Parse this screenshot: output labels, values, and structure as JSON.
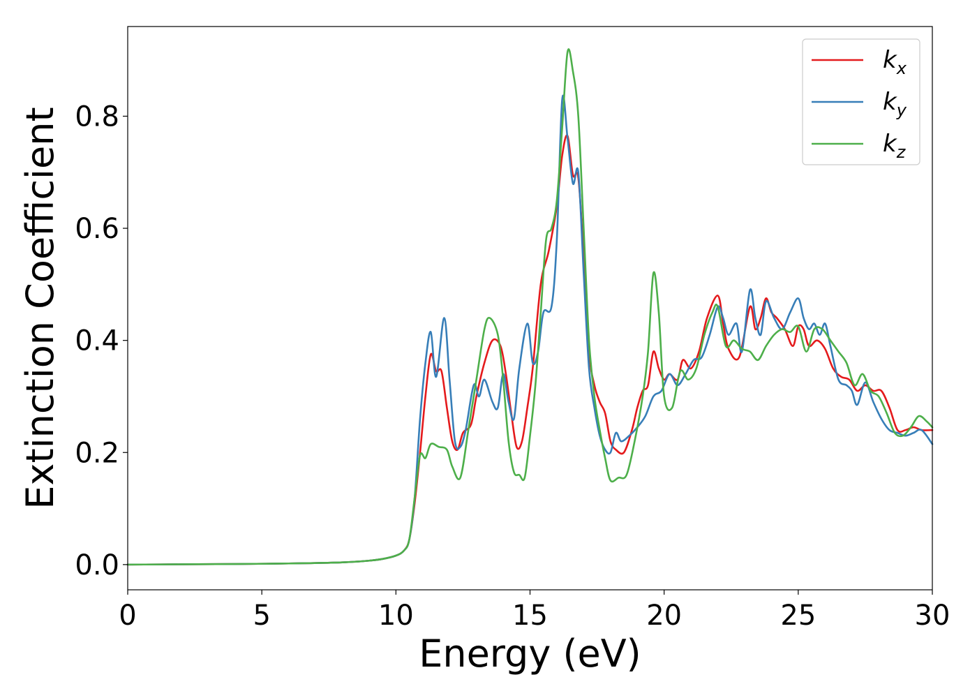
{
  "chart_data": {
    "type": "line",
    "xlabel": "Energy (eV)",
    "ylabel": "Extinction Coefficient",
    "xlim": [
      0,
      30
    ],
    "ylim": [
      -0.045,
      0.96
    ],
    "xticks": [
      0,
      5,
      10,
      15,
      20,
      25,
      30
    ],
    "xtick_labels": [
      "0",
      "5",
      "10",
      "15",
      "20",
      "25",
      "30"
    ],
    "yticks": [
      0.0,
      0.2,
      0.4,
      0.6,
      0.8
    ],
    "ytick_labels": [
      "0.0",
      "0.2",
      "0.4",
      "0.6",
      "0.8"
    ],
    "grid": false,
    "legend_position": "top-right",
    "series": [
      {
        "name": "k",
        "subscript": "x",
        "color": "#e41a1c",
        "points": [
          [
            0,
            0
          ],
          [
            2,
            0.0005
          ],
          [
            4,
            0.001
          ],
          [
            6,
            0.002
          ],
          [
            8,
            0.004
          ],
          [
            9,
            0.007
          ],
          [
            9.5,
            0.01
          ],
          [
            10,
            0.016
          ],
          [
            10.3,
            0.025
          ],
          [
            10.5,
            0.045
          ],
          [
            10.7,
            0.11
          ],
          [
            10.9,
            0.2
          ],
          [
            11.1,
            0.3
          ],
          [
            11.3,
            0.375
          ],
          [
            11.5,
            0.345
          ],
          [
            11.7,
            0.345
          ],
          [
            11.9,
            0.28
          ],
          [
            12.1,
            0.22
          ],
          [
            12.3,
            0.205
          ],
          [
            12.5,
            0.235
          ],
          [
            12.8,
            0.25
          ],
          [
            13.0,
            0.3
          ],
          [
            13.3,
            0.36
          ],
          [
            13.6,
            0.4
          ],
          [
            13.9,
            0.39
          ],
          [
            14.1,
            0.34
          ],
          [
            14.3,
            0.27
          ],
          [
            14.5,
            0.21
          ],
          [
            14.7,
            0.22
          ],
          [
            14.9,
            0.28
          ],
          [
            15.1,
            0.35
          ],
          [
            15.4,
            0.5
          ],
          [
            15.7,
            0.56
          ],
          [
            16.0,
            0.64
          ],
          [
            16.2,
            0.73
          ],
          [
            16.4,
            0.765
          ],
          [
            16.6,
            0.695
          ],
          [
            16.8,
            0.69
          ],
          [
            17.0,
            0.55
          ],
          [
            17.2,
            0.38
          ],
          [
            17.4,
            0.32
          ],
          [
            17.6,
            0.29
          ],
          [
            17.8,
            0.27
          ],
          [
            18.0,
            0.22
          ],
          [
            18.2,
            0.205
          ],
          [
            18.5,
            0.2
          ],
          [
            18.8,
            0.24
          ],
          [
            19.0,
            0.28
          ],
          [
            19.2,
            0.31
          ],
          [
            19.4,
            0.32
          ],
          [
            19.6,
            0.38
          ],
          [
            19.8,
            0.35
          ],
          [
            20.0,
            0.33
          ],
          [
            20.2,
            0.34
          ],
          [
            20.5,
            0.33
          ],
          [
            20.7,
            0.365
          ],
          [
            21.0,
            0.35
          ],
          [
            21.3,
            0.38
          ],
          [
            21.6,
            0.44
          ],
          [
            22.0,
            0.48
          ],
          [
            22.2,
            0.43
          ],
          [
            22.4,
            0.385
          ],
          [
            22.8,
            0.37
          ],
          [
            23.2,
            0.46
          ],
          [
            23.4,
            0.42
          ],
          [
            23.6,
            0.44
          ],
          [
            23.8,
            0.475
          ],
          [
            24.0,
            0.45
          ],
          [
            24.2,
            0.44
          ],
          [
            24.5,
            0.42
          ],
          [
            24.8,
            0.39
          ],
          [
            25.0,
            0.425
          ],
          [
            25.2,
            0.42
          ],
          [
            25.4,
            0.39
          ],
          [
            25.7,
            0.4
          ],
          [
            26.0,
            0.385
          ],
          [
            26.3,
            0.35
          ],
          [
            26.6,
            0.335
          ],
          [
            26.9,
            0.33
          ],
          [
            27.2,
            0.31
          ],
          [
            27.5,
            0.32
          ],
          [
            27.8,
            0.31
          ],
          [
            28.1,
            0.31
          ],
          [
            28.4,
            0.28
          ],
          [
            28.7,
            0.24
          ],
          [
            29.0,
            0.24
          ],
          [
            29.3,
            0.245
          ],
          [
            29.6,
            0.24
          ],
          [
            30.0,
            0.24
          ]
        ]
      },
      {
        "name": "k",
        "subscript": "y",
        "color": "#377eb8",
        "points": [
          [
            0,
            0
          ],
          [
            2,
            0.0005
          ],
          [
            4,
            0.001
          ],
          [
            6,
            0.002
          ],
          [
            8,
            0.004
          ],
          [
            9,
            0.007
          ],
          [
            9.5,
            0.01
          ],
          [
            10,
            0.016
          ],
          [
            10.3,
            0.025
          ],
          [
            10.5,
            0.045
          ],
          [
            10.7,
            0.12
          ],
          [
            10.9,
            0.26
          ],
          [
            11.1,
            0.36
          ],
          [
            11.3,
            0.415
          ],
          [
            11.5,
            0.335
          ],
          [
            11.8,
            0.44
          ],
          [
            12.0,
            0.33
          ],
          [
            12.2,
            0.22
          ],
          [
            12.4,
            0.21
          ],
          [
            12.6,
            0.24
          ],
          [
            12.9,
            0.32
          ],
          [
            13.1,
            0.3
          ],
          [
            13.3,
            0.33
          ],
          [
            13.6,
            0.29
          ],
          [
            13.8,
            0.28
          ],
          [
            14.0,
            0.34
          ],
          [
            14.2,
            0.29
          ],
          [
            14.4,
            0.26
          ],
          [
            14.6,
            0.35
          ],
          [
            14.9,
            0.43
          ],
          [
            15.1,
            0.36
          ],
          [
            15.3,
            0.38
          ],
          [
            15.5,
            0.45
          ],
          [
            15.8,
            0.46
          ],
          [
            16.0,
            0.58
          ],
          [
            16.2,
            0.83
          ],
          [
            16.4,
            0.76
          ],
          [
            16.6,
            0.68
          ],
          [
            16.8,
            0.7
          ],
          [
            17.0,
            0.52
          ],
          [
            17.2,
            0.35
          ],
          [
            17.4,
            0.28
          ],
          [
            17.6,
            0.23
          ],
          [
            17.8,
            0.205
          ],
          [
            18.0,
            0.2
          ],
          [
            18.2,
            0.235
          ],
          [
            18.4,
            0.22
          ],
          [
            18.7,
            0.23
          ],
          [
            19.0,
            0.245
          ],
          [
            19.3,
            0.265
          ],
          [
            19.6,
            0.3
          ],
          [
            19.9,
            0.31
          ],
          [
            20.2,
            0.34
          ],
          [
            20.5,
            0.32
          ],
          [
            20.8,
            0.34
          ],
          [
            21.1,
            0.365
          ],
          [
            21.4,
            0.37
          ],
          [
            21.7,
            0.41
          ],
          [
            22.0,
            0.46
          ],
          [
            22.2,
            0.44
          ],
          [
            22.4,
            0.41
          ],
          [
            22.7,
            0.43
          ],
          [
            22.9,
            0.38
          ],
          [
            23.2,
            0.49
          ],
          [
            23.4,
            0.44
          ],
          [
            23.6,
            0.41
          ],
          [
            23.8,
            0.47
          ],
          [
            24.1,
            0.44
          ],
          [
            24.4,
            0.42
          ],
          [
            24.7,
            0.45
          ],
          [
            25.0,
            0.475
          ],
          [
            25.2,
            0.44
          ],
          [
            25.4,
            0.42
          ],
          [
            25.6,
            0.43
          ],
          [
            25.8,
            0.41
          ],
          [
            26.0,
            0.43
          ],
          [
            26.2,
            0.39
          ],
          [
            26.5,
            0.33
          ],
          [
            26.8,
            0.32
          ],
          [
            27.0,
            0.31
          ],
          [
            27.2,
            0.285
          ],
          [
            27.5,
            0.325
          ],
          [
            27.8,
            0.29
          ],
          [
            28.1,
            0.26
          ],
          [
            28.4,
            0.24
          ],
          [
            28.7,
            0.235
          ],
          [
            29.0,
            0.23
          ],
          [
            29.3,
            0.235
          ],
          [
            29.6,
            0.24
          ],
          [
            30.0,
            0.215
          ]
        ]
      },
      {
        "name": "k",
        "subscript": "z",
        "color": "#4daf4a",
        "points": [
          [
            0,
            0
          ],
          [
            2,
            0.0005
          ],
          [
            4,
            0.001
          ],
          [
            6,
            0.002
          ],
          [
            8,
            0.004
          ],
          [
            9,
            0.007
          ],
          [
            9.5,
            0.01
          ],
          [
            10,
            0.016
          ],
          [
            10.3,
            0.025
          ],
          [
            10.5,
            0.045
          ],
          [
            10.7,
            0.12
          ],
          [
            10.9,
            0.195
          ],
          [
            11.1,
            0.19
          ],
          [
            11.3,
            0.215
          ],
          [
            11.6,
            0.21
          ],
          [
            11.9,
            0.205
          ],
          [
            12.1,
            0.175
          ],
          [
            12.4,
            0.155
          ],
          [
            12.7,
            0.24
          ],
          [
            13.0,
            0.33
          ],
          [
            13.3,
            0.42
          ],
          [
            13.5,
            0.44
          ],
          [
            13.8,
            0.41
          ],
          [
            14.0,
            0.33
          ],
          [
            14.2,
            0.22
          ],
          [
            14.4,
            0.165
          ],
          [
            14.6,
            0.16
          ],
          [
            14.8,
            0.155
          ],
          [
            15.0,
            0.23
          ],
          [
            15.2,
            0.32
          ],
          [
            15.4,
            0.45
          ],
          [
            15.6,
            0.58
          ],
          [
            15.8,
            0.6
          ],
          [
            16.0,
            0.65
          ],
          [
            16.2,
            0.78
          ],
          [
            16.4,
            0.915
          ],
          [
            16.6,
            0.88
          ],
          [
            16.8,
            0.8
          ],
          [
            17.0,
            0.6
          ],
          [
            17.2,
            0.4
          ],
          [
            17.4,
            0.3
          ],
          [
            17.6,
            0.24
          ],
          [
            17.8,
            0.19
          ],
          [
            18.0,
            0.15
          ],
          [
            18.3,
            0.155
          ],
          [
            18.6,
            0.16
          ],
          [
            18.9,
            0.22
          ],
          [
            19.2,
            0.3
          ],
          [
            19.4,
            0.38
          ],
          [
            19.6,
            0.52
          ],
          [
            19.8,
            0.45
          ],
          [
            20.0,
            0.3
          ],
          [
            20.3,
            0.28
          ],
          [
            20.6,
            0.345
          ],
          [
            20.9,
            0.33
          ],
          [
            21.2,
            0.35
          ],
          [
            21.5,
            0.41
          ],
          [
            21.8,
            0.45
          ],
          [
            22.0,
            0.46
          ],
          [
            22.3,
            0.39
          ],
          [
            22.6,
            0.4
          ],
          [
            22.9,
            0.385
          ],
          [
            23.2,
            0.38
          ],
          [
            23.5,
            0.365
          ],
          [
            23.8,
            0.39
          ],
          [
            24.1,
            0.41
          ],
          [
            24.4,
            0.42
          ],
          [
            24.7,
            0.415
          ],
          [
            25.0,
            0.425
          ],
          [
            25.3,
            0.38
          ],
          [
            25.6,
            0.42
          ],
          [
            25.9,
            0.42
          ],
          [
            26.2,
            0.4
          ],
          [
            26.5,
            0.38
          ],
          [
            26.8,
            0.36
          ],
          [
            27.1,
            0.32
          ],
          [
            27.4,
            0.34
          ],
          [
            27.7,
            0.31
          ],
          [
            28.0,
            0.3
          ],
          [
            28.3,
            0.27
          ],
          [
            28.6,
            0.235
          ],
          [
            28.9,
            0.23
          ],
          [
            29.2,
            0.245
          ],
          [
            29.5,
            0.265
          ],
          [
            29.8,
            0.255
          ],
          [
            30.0,
            0.245
          ]
        ]
      }
    ]
  }
}
